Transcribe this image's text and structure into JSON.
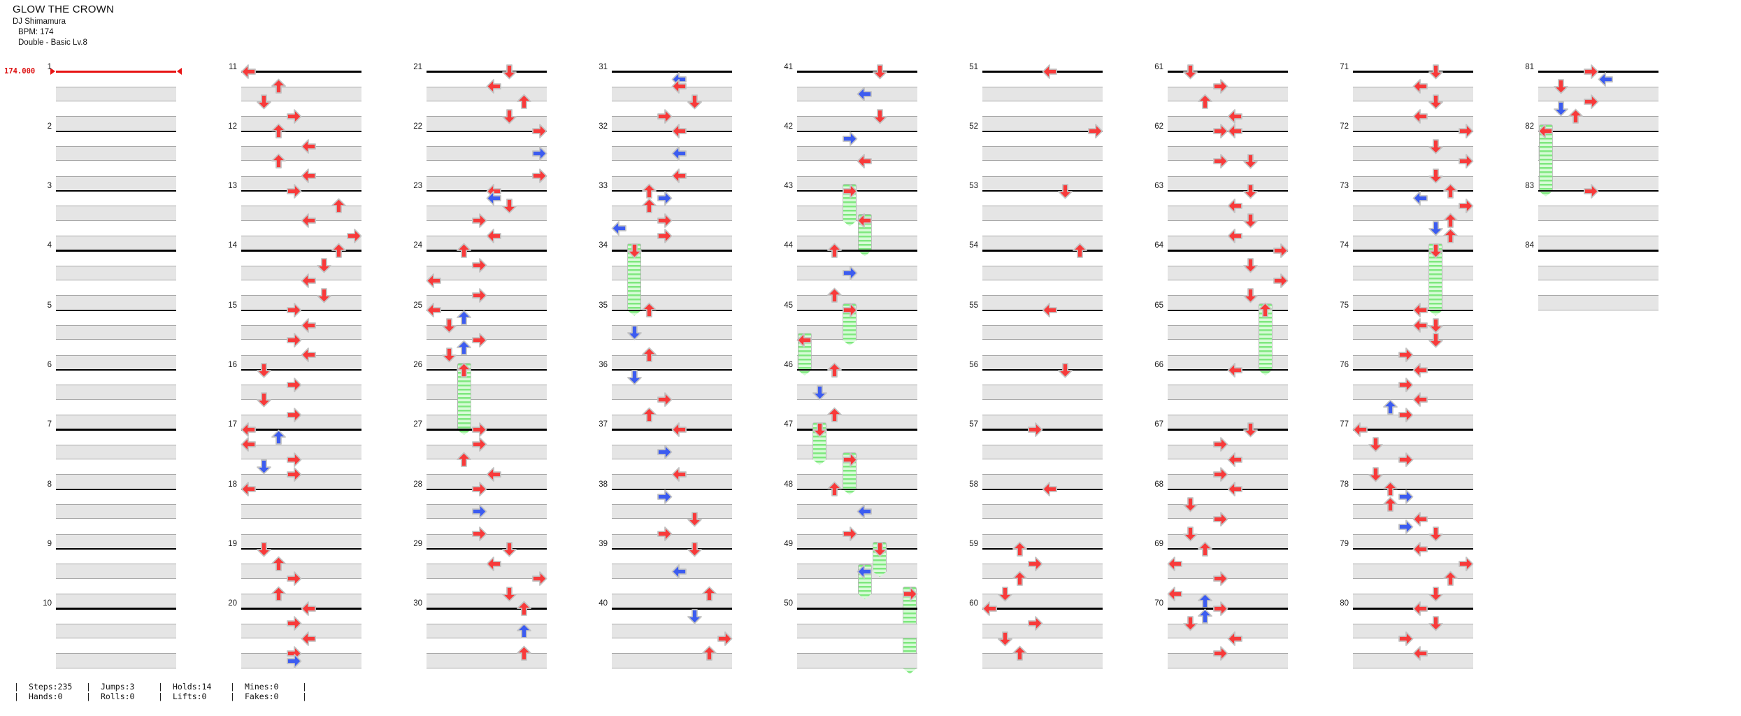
{
  "header": {
    "title": "GLOW THE CROWN",
    "artist": "DJ Shimamura",
    "bpm_label": "BPM: 174",
    "difficulty": "Double - Basic  Lv.8"
  },
  "bpm_marker": {
    "value": "174.000"
  },
  "stats": {
    "separator": "|",
    "rows": [
      [
        "Steps:235",
        "Jumps:3",
        "Holds:14",
        "Mines:0"
      ],
      [
        "Hands:0",
        "Rolls:0",
        "Lifts:0",
        "Fakes:0"
      ]
    ]
  },
  "colors": {
    "tap_red": "#f83a3a",
    "tap_blue": "#3c5cf0",
    "note_outline": "#c3c3c3",
    "hold_body_light": "#d7fbd7",
    "hold_stripe": "#7fe87f",
    "bpm_red": "#e81414",
    "band_fill": "#e5e5e5",
    "band_border": "#a8a8a8",
    "measure_line": "#000000"
  },
  "chart": {
    "total_measures": 84,
    "measures_per_column": 10,
    "columns": 9,
    "panels": 8,
    "panel_directions": [
      "left",
      "down",
      "up",
      "right"
    ],
    "note_types": {
      "r": "red-quarter-tap",
      "b": "blue-eighth-tap",
      "h": "hold-red-head",
      "hb": "hold-blue-head"
    },
    "note_format": "[eighth_position_0-7, panel_column_0-7, type, hold_length_in_eighths]",
    "measures": {
      "11": [
        [
          0,
          0,
          "r"
        ],
        [
          2,
          2,
          "r"
        ],
        [
          4,
          1,
          "r"
        ],
        [
          6,
          3,
          "r"
        ]
      ],
      "12": [
        [
          0,
          2,
          "r"
        ],
        [
          2,
          4,
          "r"
        ],
        [
          4,
          2,
          "r"
        ],
        [
          6,
          4,
          "r"
        ]
      ],
      "13": [
        [
          0,
          3,
          "r"
        ],
        [
          2,
          6,
          "r"
        ],
        [
          4,
          4,
          "r"
        ],
        [
          6,
          7,
          "r"
        ]
      ],
      "14": [
        [
          0,
          6,
          "r"
        ],
        [
          2,
          5,
          "r"
        ],
        [
          4,
          4,
          "r"
        ],
        [
          6,
          5,
          "r"
        ]
      ],
      "15": [
        [
          0,
          3,
          "r"
        ],
        [
          2,
          4,
          "r"
        ],
        [
          4,
          3,
          "r"
        ],
        [
          6,
          4,
          "r"
        ]
      ],
      "16": [
        [
          0,
          1,
          "r"
        ],
        [
          2,
          3,
          "r"
        ],
        [
          4,
          1,
          "r"
        ],
        [
          6,
          3,
          "r"
        ]
      ],
      "17": [
        [
          0,
          0,
          "r"
        ],
        [
          1,
          2,
          "b"
        ],
        [
          2,
          0,
          "r"
        ],
        [
          4,
          3,
          "r"
        ],
        [
          5,
          1,
          "b"
        ],
        [
          6,
          3,
          "r"
        ]
      ],
      "18": [
        [
          0,
          0,
          "r"
        ]
      ],
      "19": [
        [
          0,
          1,
          "r"
        ],
        [
          2,
          2,
          "r"
        ],
        [
          4,
          3,
          "r"
        ],
        [
          6,
          2,
          "r"
        ]
      ],
      "20": [
        [
          0,
          4,
          "r"
        ],
        [
          2,
          3,
          "r"
        ],
        [
          4,
          4,
          "r"
        ],
        [
          6,
          3,
          "r"
        ],
        [
          7,
          3,
          "b"
        ]
      ],
      "21": [
        [
          0,
          5,
          "r"
        ],
        [
          2,
          4,
          "r"
        ],
        [
          4,
          6,
          "r"
        ],
        [
          6,
          5,
          "r"
        ]
      ],
      "22": [
        [
          0,
          7,
          "r"
        ],
        [
          3,
          7,
          "b"
        ],
        [
          6,
          7,
          "r"
        ]
      ],
      "23": [
        [
          0,
          4,
          "r"
        ],
        [
          1,
          4,
          "b"
        ],
        [
          2,
          5,
          "r"
        ],
        [
          4,
          3,
          "r"
        ],
        [
          6,
          4,
          "r"
        ]
      ],
      "24": [
        [
          0,
          2,
          "r"
        ],
        [
          2,
          3,
          "r"
        ],
        [
          4,
          0,
          "r"
        ],
        [
          6,
          3,
          "r"
        ]
      ],
      "25": [
        [
          0,
          0,
          "r"
        ],
        [
          1,
          2,
          "b"
        ],
        [
          2,
          1,
          "r"
        ],
        [
          4,
          3,
          "r"
        ],
        [
          5,
          2,
          "b"
        ],
        [
          6,
          1,
          "r"
        ]
      ],
      "26": [
        [
          0,
          2,
          "h",
          8
        ]
      ],
      "27": [
        [
          0,
          3,
          "r"
        ],
        [
          2,
          3,
          "r"
        ],
        [
          4,
          2,
          "r"
        ],
        [
          6,
          4,
          "r"
        ]
      ],
      "28": [
        [
          0,
          3,
          "r"
        ],
        [
          3,
          3,
          "b"
        ],
        [
          6,
          3,
          "r"
        ]
      ],
      "29": [
        [
          0,
          5,
          "r"
        ],
        [
          2,
          4,
          "r"
        ],
        [
          4,
          7,
          "r"
        ],
        [
          6,
          5,
          "r"
        ]
      ],
      "30": [
        [
          0,
          6,
          "r"
        ],
        [
          3,
          6,
          "b"
        ],
        [
          6,
          6,
          "r"
        ]
      ],
      "31": [
        [
          1,
          4,
          "b"
        ],
        [
          2,
          4,
          "r"
        ],
        [
          4,
          5,
          "r"
        ],
        [
          6,
          3,
          "r"
        ]
      ],
      "32": [
        [
          0,
          4,
          "r"
        ],
        [
          3,
          4,
          "b"
        ],
        [
          6,
          4,
          "r"
        ]
      ],
      "33": [
        [
          0,
          2,
          "r"
        ],
        [
          1,
          3,
          "b"
        ],
        [
          2,
          2,
          "r"
        ],
        [
          4,
          3,
          "r"
        ],
        [
          5,
          0,
          "b"
        ],
        [
          6,
          3,
          "r"
        ]
      ],
      "34": [
        [
          0,
          1,
          "h",
          8
        ]
      ],
      "35": [
        [
          0,
          2,
          "r"
        ],
        [
          3,
          1,
          "b"
        ],
        [
          6,
          2,
          "r"
        ]
      ],
      "36": [
        [
          1,
          1,
          "b"
        ],
        [
          4,
          3,
          "r"
        ],
        [
          6,
          2,
          "r"
        ]
      ],
      "37": [
        [
          0,
          4,
          "r"
        ],
        [
          3,
          3,
          "b"
        ],
        [
          6,
          4,
          "r"
        ]
      ],
      "38": [
        [
          1,
          3,
          "b"
        ],
        [
          4,
          5,
          "r"
        ],
        [
          6,
          3,
          "r"
        ]
      ],
      "39": [
        [
          0,
          5,
          "r"
        ],
        [
          3,
          4,
          "b"
        ],
        [
          6,
          6,
          "r"
        ]
      ],
      "40": [
        [
          1,
          5,
          "b"
        ],
        [
          4,
          7,
          "r"
        ],
        [
          6,
          6,
          "r"
        ]
      ],
      "41": [
        [
          0,
          5,
          "r"
        ],
        [
          3,
          4,
          "b"
        ],
        [
          6,
          5,
          "r"
        ]
      ],
      "42": [
        [
          1,
          3,
          "b"
        ],
        [
          4,
          4,
          "r"
        ]
      ],
      "43": [
        [
          0,
          3,
          "h",
          4
        ],
        [
          4,
          4,
          "h",
          4
        ]
      ],
      "44": [
        [
          0,
          2,
          "r"
        ],
        [
          3,
          3,
          "b"
        ],
        [
          6,
          2,
          "r"
        ]
      ],
      "45": [
        [
          0,
          3,
          "h",
          4
        ],
        [
          4,
          0,
          "h",
          4
        ]
      ],
      "46": [
        [
          0,
          2,
          "r"
        ],
        [
          3,
          1,
          "b"
        ],
        [
          6,
          2,
          "r"
        ]
      ],
      "47": [
        [
          0,
          1,
          "h",
          4
        ],
        [
          4,
          3,
          "h",
          4
        ]
      ],
      "48": [
        [
          0,
          2,
          "r"
        ],
        [
          3,
          4,
          "b"
        ],
        [
          6,
          3,
          "r"
        ]
      ],
      "49": [
        [
          0,
          5,
          "h",
          3
        ],
        [
          3,
          4,
          "hb",
          3
        ],
        [
          6,
          7,
          "h",
          10
        ]
      ],
      "50": [],
      "51": [
        [
          0,
          4,
          "r"
        ]
      ],
      "52": [
        [
          0,
          7,
          "r"
        ]
      ],
      "53": [
        [
          0,
          5,
          "r"
        ]
      ],
      "54": [
        [
          0,
          6,
          "r"
        ]
      ],
      "55": [
        [
          0,
          4,
          "r"
        ]
      ],
      "56": [
        [
          0,
          5,
          "r"
        ]
      ],
      "57": [
        [
          0,
          3,
          "r"
        ]
      ],
      "58": [
        [
          0,
          4,
          "r"
        ]
      ],
      "59": [
        [
          0,
          2,
          "r"
        ],
        [
          2,
          3,
          "r"
        ],
        [
          4,
          2,
          "r"
        ],
        [
          6,
          1,
          "r"
        ]
      ],
      "60": [
        [
          0,
          0,
          "r"
        ],
        [
          2,
          3,
          "r"
        ],
        [
          4,
          1,
          "r"
        ],
        [
          6,
          2,
          "r"
        ]
      ],
      "61": [
        [
          0,
          1,
          "r"
        ],
        [
          2,
          3,
          "r"
        ],
        [
          4,
          2,
          "r"
        ],
        [
          6,
          4,
          "r"
        ]
      ],
      "62": [
        [
          0,
          3,
          "r"
        ],
        [
          0,
          4,
          "r"
        ],
        [
          4,
          3,
          "r"
        ],
        [
          4,
          5,
          "r"
        ]
      ],
      "63": [
        [
          0,
          5,
          "r"
        ],
        [
          2,
          4,
          "r"
        ],
        [
          4,
          5,
          "r"
        ],
        [
          6,
          4,
          "r"
        ]
      ],
      "64": [
        [
          0,
          7,
          "r"
        ],
        [
          2,
          5,
          "r"
        ],
        [
          4,
          7,
          "r"
        ],
        [
          6,
          5,
          "r"
        ]
      ],
      "65": [
        [
          0,
          6,
          "h",
          8
        ]
      ],
      "66": [
        [
          0,
          4,
          "r"
        ]
      ],
      "67": [
        [
          0,
          5,
          "r"
        ],
        [
          2,
          3,
          "r"
        ],
        [
          4,
          4,
          "r"
        ],
        [
          6,
          3,
          "r"
        ]
      ],
      "68": [
        [
          0,
          4,
          "r"
        ],
        [
          2,
          1,
          "r"
        ],
        [
          4,
          3,
          "r"
        ],
        [
          6,
          1,
          "r"
        ]
      ],
      "69": [
        [
          0,
          2,
          "r"
        ],
        [
          2,
          0,
          "r"
        ],
        [
          4,
          3,
          "r"
        ],
        [
          6,
          0,
          "r"
        ],
        [
          7,
          2,
          "b"
        ]
      ],
      "70": [
        [
          0,
          3,
          "r"
        ],
        [
          1,
          2,
          "b"
        ],
        [
          2,
          1,
          "r"
        ],
        [
          4,
          4,
          "r"
        ],
        [
          6,
          3,
          "r"
        ]
      ],
      "71": [
        [
          0,
          5,
          "r"
        ],
        [
          2,
          4,
          "r"
        ],
        [
          4,
          5,
          "r"
        ],
        [
          6,
          4,
          "r"
        ]
      ],
      "72": [
        [
          0,
          7,
          "r"
        ],
        [
          2,
          5,
          "r"
        ],
        [
          4,
          7,
          "r"
        ],
        [
          6,
          5,
          "r"
        ]
      ],
      "73": [
        [
          0,
          6,
          "r"
        ],
        [
          1,
          4,
          "b"
        ],
        [
          2,
          7,
          "r"
        ],
        [
          4,
          6,
          "r"
        ],
        [
          5,
          5,
          "b"
        ],
        [
          6,
          6,
          "r"
        ]
      ],
      "74": [
        [
          0,
          5,
          "h",
          8
        ]
      ],
      "75": [
        [
          0,
          4,
          "r"
        ],
        [
          2,
          4,
          "r"
        ],
        [
          2,
          5,
          "r"
        ],
        [
          4,
          5,
          "r"
        ],
        [
          6,
          3,
          "r"
        ]
      ],
      "76": [
        [
          0,
          4,
          "r"
        ],
        [
          2,
          3,
          "r"
        ],
        [
          4,
          4,
          "r"
        ],
        [
          5,
          2,
          "b"
        ],
        [
          6,
          3,
          "r"
        ]
      ],
      "77": [
        [
          0,
          0,
          "r"
        ],
        [
          2,
          1,
          "r"
        ],
        [
          4,
          3,
          "r"
        ],
        [
          6,
          1,
          "r"
        ]
      ],
      "78": [
        [
          0,
          2,
          "r"
        ],
        [
          1,
          3,
          "b"
        ],
        [
          2,
          2,
          "r"
        ],
        [
          4,
          4,
          "r"
        ],
        [
          5,
          3,
          "b"
        ],
        [
          6,
          5,
          "r"
        ]
      ],
      "79": [
        [
          0,
          4,
          "r"
        ],
        [
          2,
          7,
          "r"
        ],
        [
          4,
          6,
          "r"
        ],
        [
          6,
          5,
          "r"
        ]
      ],
      "80": [
        [
          0,
          4,
          "r"
        ],
        [
          2,
          5,
          "r"
        ],
        [
          4,
          3,
          "r"
        ],
        [
          6,
          4,
          "r"
        ]
      ],
      "81": [
        [
          0,
          3,
          "r"
        ],
        [
          1,
          4,
          "b"
        ],
        [
          2,
          1,
          "r"
        ],
        [
          4,
          3,
          "r"
        ],
        [
          5,
          1,
          "b"
        ],
        [
          6,
          2,
          "r"
        ]
      ],
      "82": [
        [
          0,
          0,
          "h",
          8
        ]
      ],
      "83": [
        [
          0,
          3,
          "r"
        ]
      ],
      "84": []
    }
  }
}
